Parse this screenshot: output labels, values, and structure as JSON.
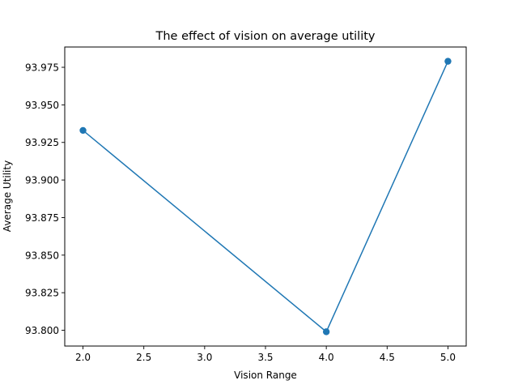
{
  "chart_data": {
    "type": "line",
    "title": "The effect of vision on average utility",
    "xlabel": "Vision Range",
    "ylabel": "Average Utility",
    "x": [
      2.0,
      4.0,
      5.0
    ],
    "series": [
      {
        "values": [
          93.933,
          93.799,
          93.979
        ],
        "color": "#1f77b4",
        "marker": "circle"
      }
    ],
    "xlim": [
      1.85,
      5.15
    ],
    "ylim": [
      93.7895,
      93.9885
    ],
    "xticks": [
      2.0,
      2.5,
      3.0,
      3.5,
      4.0,
      4.5,
      5.0
    ],
    "xtick_labels": [
      "2.0",
      "2.5",
      "3.0",
      "3.5",
      "4.0",
      "4.5",
      "5.0"
    ],
    "yticks": [
      93.8,
      93.825,
      93.85,
      93.875,
      93.9,
      93.925,
      93.95,
      93.975
    ],
    "ytick_labels": [
      "93.800",
      "93.825",
      "93.850",
      "93.875",
      "93.900",
      "93.925",
      "93.950",
      "93.975"
    ],
    "grid": false,
    "legend": false
  }
}
